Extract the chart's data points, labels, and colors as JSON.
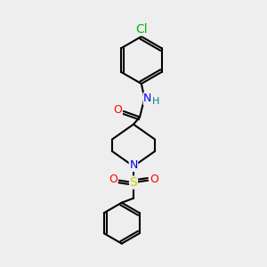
{
  "bg_color": "#eeeeee",
  "atom_colors": {
    "C": "#000000",
    "N": "#0000ff",
    "O": "#ff0000",
    "S": "#cccc00",
    "Cl": "#00bb00",
    "H": "#008080"
  },
  "bond_color": "#000000",
  "bond_width": 1.5,
  "font_size_atom": 9
}
